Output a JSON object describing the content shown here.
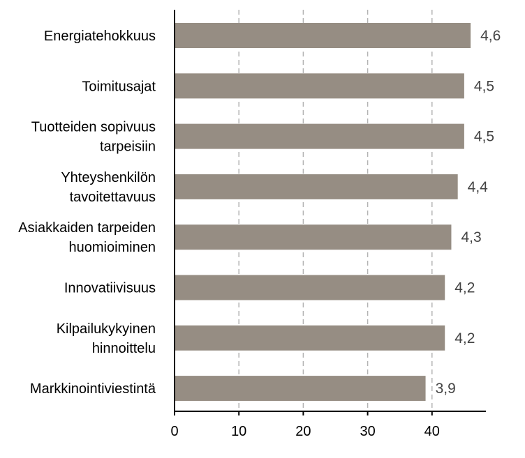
{
  "chart_data": {
    "type": "bar",
    "orientation": "horizontal",
    "categories": [
      [
        "Energiatehokkuus"
      ],
      [
        "Toimitusajat"
      ],
      [
        "Tuotteiden sopivuus",
        "tarpeisiin"
      ],
      [
        "Yhteyshenkilön",
        "tavoitettavuus"
      ],
      [
        "Asiakkaiden tarpeiden",
        "huomioiminen"
      ],
      [
        "Innovatiivisuus"
      ],
      [
        "Kilpailukykyinen",
        "hinnoittelu"
      ],
      [
        "Markkinointiviestintä"
      ]
    ],
    "values": [
      46,
      45,
      45,
      44,
      43,
      42,
      42,
      39
    ],
    "value_labels": [
      "4,6",
      "4,5",
      "4,5",
      "4,4",
      "4,3",
      "4,2",
      "4,2",
      "3,9"
    ],
    "xlim": [
      0,
      45
    ],
    "xticks": [
      0,
      10,
      20,
      30,
      40
    ],
    "xtick_labels": [
      "0",
      "10",
      "20",
      "30",
      "40"
    ],
    "grid": "vertical-dashed",
    "colors": {
      "bar": "#968d83",
      "grid": "#b3b3b3",
      "axis": "#000000",
      "label": "#444444"
    }
  }
}
